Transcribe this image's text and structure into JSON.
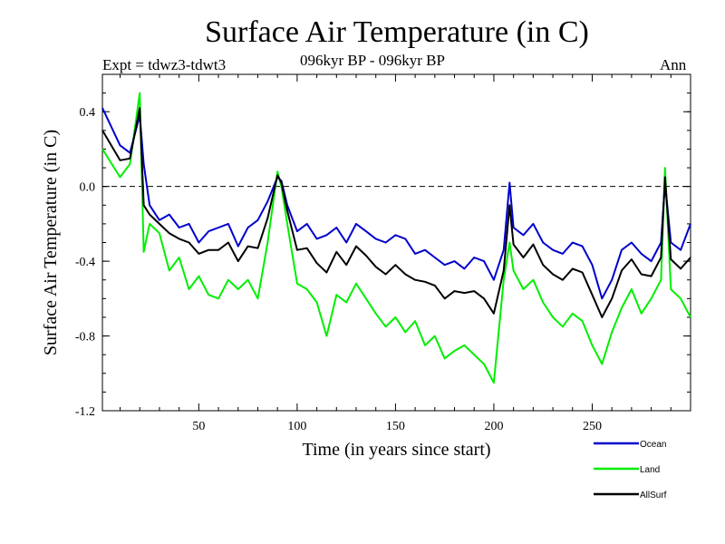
{
  "chart_data": {
    "type": "line",
    "title": "Surface Air Temperature (in C)",
    "subtitle_left": "Expt = tdwz3-tdwt3",
    "subtitle_center": "096kyr BP - 096kyr BP",
    "subtitle_right": "Ann",
    "xlabel": "Time (in years since start)",
    "ylabel": "Surface Air Temperature (in C)",
    "xlim": [
      1,
      300
    ],
    "ylim": [
      -1.2,
      0.6
    ],
    "xticks": [
      50,
      100,
      150,
      200,
      250
    ],
    "xtick_labels": [
      "50",
      "100",
      "150",
      "200",
      "250"
    ],
    "yticks": [
      -1.2,
      -0.8,
      -0.4,
      0.0,
      0.4
    ],
    "ytick_labels": [
      "-1.2",
      "-0.8",
      "-0.4",
      "0.0",
      "0.4"
    ],
    "reference_line": 0.0,
    "x": [
      1,
      10,
      15,
      20,
      22,
      25,
      30,
      35,
      40,
      45,
      50,
      55,
      60,
      65,
      70,
      75,
      80,
      85,
      90,
      92,
      95,
      100,
      105,
      110,
      115,
      120,
      125,
      130,
      135,
      140,
      145,
      150,
      155,
      160,
      165,
      170,
      175,
      180,
      185,
      190,
      195,
      200,
      205,
      208,
      210,
      215,
      220,
      225,
      230,
      235,
      240,
      245,
      250,
      255,
      260,
      265,
      270,
      275,
      280,
      285,
      287,
      290,
      295,
      300
    ],
    "series": [
      {
        "name": "Ocean",
        "color": "#0000cc",
        "values": [
          0.42,
          0.22,
          0.18,
          0.38,
          0.12,
          -0.1,
          -0.18,
          -0.15,
          -0.22,
          -0.2,
          -0.3,
          -0.24,
          -0.22,
          -0.2,
          -0.32,
          -0.22,
          -0.18,
          -0.08,
          0.05,
          0.03,
          -0.1,
          -0.24,
          -0.2,
          -0.28,
          -0.26,
          -0.22,
          -0.3,
          -0.2,
          -0.24,
          -0.28,
          -0.3,
          -0.26,
          -0.28,
          -0.36,
          -0.34,
          -0.38,
          -0.42,
          -0.4,
          -0.44,
          -0.38,
          -0.4,
          -0.5,
          -0.34,
          0.02,
          -0.22,
          -0.26,
          -0.2,
          -0.3,
          -0.34,
          -0.36,
          -0.3,
          -0.32,
          -0.42,
          -0.6,
          -0.5,
          -0.34,
          -0.3,
          -0.36,
          -0.4,
          -0.3,
          0.02,
          -0.3,
          -0.34,
          -0.2
        ]
      },
      {
        "name": "Land",
        "color": "#00ee00",
        "values": [
          0.2,
          0.05,
          0.12,
          0.5,
          -0.35,
          -0.2,
          -0.25,
          -0.45,
          -0.38,
          -0.55,
          -0.48,
          -0.58,
          -0.6,
          -0.5,
          -0.55,
          -0.5,
          -0.6,
          -0.3,
          0.08,
          0.0,
          -0.2,
          -0.52,
          -0.55,
          -0.62,
          -0.8,
          -0.58,
          -0.62,
          -0.52,
          -0.6,
          -0.68,
          -0.75,
          -0.7,
          -0.78,
          -0.72,
          -0.85,
          -0.8,
          -0.92,
          -0.88,
          -0.85,
          -0.9,
          -0.95,
          -1.05,
          -0.5,
          -0.3,
          -0.45,
          -0.55,
          -0.5,
          -0.62,
          -0.7,
          -0.75,
          -0.68,
          -0.72,
          -0.85,
          -0.95,
          -0.78,
          -0.65,
          -0.55,
          -0.68,
          -0.6,
          -0.5,
          0.1,
          -0.55,
          -0.6,
          -0.7
        ]
      },
      {
        "name": "AllSurf",
        "color": "#000000",
        "values": [
          0.3,
          0.14,
          0.15,
          0.42,
          -0.1,
          -0.15,
          -0.2,
          -0.25,
          -0.28,
          -0.3,
          -0.36,
          -0.34,
          -0.34,
          -0.3,
          -0.4,
          -0.32,
          -0.33,
          -0.17,
          0.06,
          0.02,
          -0.13,
          -0.34,
          -0.33,
          -0.41,
          -0.46,
          -0.35,
          -0.42,
          -0.32,
          -0.37,
          -0.43,
          -0.47,
          -0.42,
          -0.47,
          -0.5,
          -0.51,
          -0.53,
          -0.6,
          -0.56,
          -0.57,
          -0.56,
          -0.6,
          -0.68,
          -0.45,
          -0.1,
          -0.31,
          -0.38,
          -0.31,
          -0.42,
          -0.47,
          -0.5,
          -0.44,
          -0.46,
          -0.58,
          -0.7,
          -0.6,
          -0.45,
          -0.39,
          -0.47,
          -0.48,
          -0.38,
          0.05,
          -0.39,
          -0.44,
          -0.38
        ]
      }
    ],
    "legend_position": "bottom-right"
  }
}
